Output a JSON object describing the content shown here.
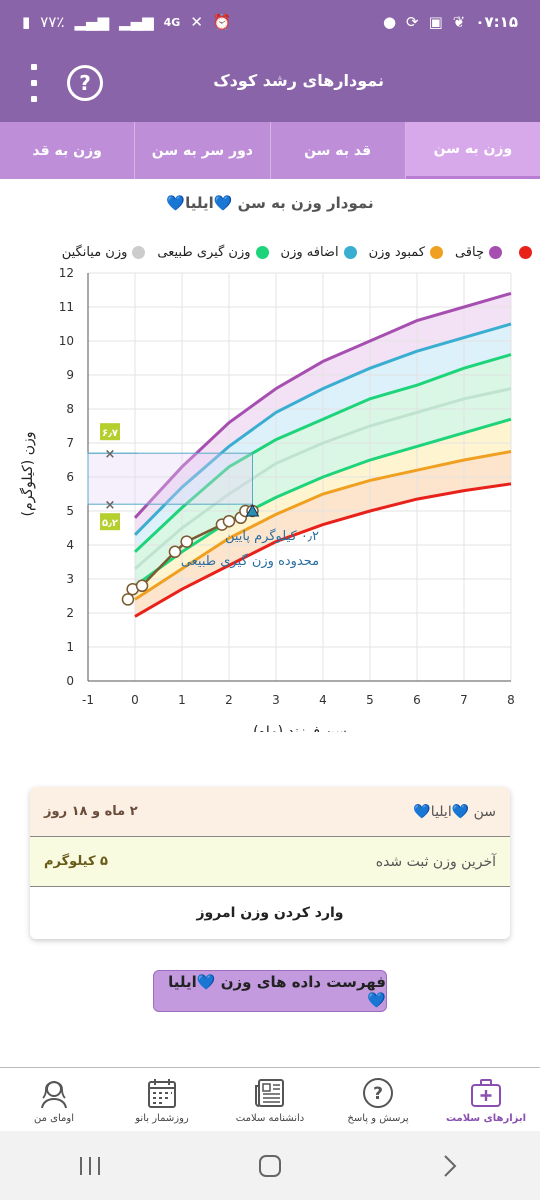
{
  "status_bar": {
    "time": "۰۷:۱۵",
    "battery": "۷۷٪",
    "network": "4G"
  },
  "app_bar": {
    "title": "نمودارهای رشد کودک",
    "help_glyph": "?"
  },
  "tabs": [
    {
      "label": "وزن به سن",
      "active": true
    },
    {
      "label": "قد به سن",
      "active": false
    },
    {
      "label": "دور سر به سن",
      "active": false
    },
    {
      "label": "وزن به قد",
      "active": false
    }
  ],
  "chart_title": "نمودار وزن به سن 💙ایلیا💙",
  "legend": [
    {
      "label": "",
      "color": "#e8211a"
    },
    {
      "label": "چاقی",
      "color": "#a64fb0"
    },
    {
      "label": "کمبود وزن",
      "color": "#f0a020"
    },
    {
      "label": "اضافه وزن",
      "color": "#3aaed0"
    },
    {
      "label": "وزن گیری طبیعی",
      "color": "#1ed47a"
    },
    {
      "label": "وزن میانگین",
      "color": "#cccccc"
    }
  ],
  "chart_data": {
    "type": "line",
    "xlabel": "سن فرزند (ماه)",
    "ylabel": "وزن (کیلوگرم)",
    "xlim": [
      -1,
      8
    ],
    "ylim": [
      0,
      12
    ],
    "xticks": [
      "-1",
      "0",
      "1",
      "2",
      "3",
      "4",
      "5",
      "6",
      "7",
      "8"
    ],
    "yticks": [
      "0",
      "1",
      "2",
      "3",
      "4",
      "5",
      "6",
      "7",
      "8",
      "9",
      "10",
      "11",
      "12"
    ],
    "x": [
      0,
      1,
      2,
      3,
      4,
      5,
      6,
      7,
      8
    ],
    "series": [
      {
        "color": "#e8211a",
        "values": [
          1.9,
          2.7,
          3.4,
          4.1,
          4.6,
          5.0,
          5.35,
          5.6,
          5.8
        ]
      },
      {
        "color": "#f0a020",
        "values": [
          2.4,
          3.3,
          4.2,
          4.9,
          5.5,
          5.9,
          6.2,
          6.5,
          6.75
        ]
      },
      {
        "color": "#1ed47a",
        "values": [
          2.8,
          3.8,
          4.7,
          5.4,
          6.0,
          6.5,
          6.9,
          7.3,
          7.7
        ]
      },
      {
        "color": "#bfe3cf",
        "values": [
          3.3,
          4.5,
          5.5,
          6.4,
          7.0,
          7.5,
          7.9,
          8.3,
          8.6
        ]
      },
      {
        "color": "#1ed47a",
        "values": [
          3.8,
          5.1,
          6.3,
          7.1,
          7.7,
          8.3,
          8.7,
          9.2,
          9.6
        ]
      },
      {
        "color": "#3aaed0",
        "values": [
          4.3,
          5.7,
          6.9,
          7.9,
          8.6,
          9.2,
          9.7,
          10.1,
          10.5
        ]
      },
      {
        "color": "#a64fb0",
        "values": [
          4.8,
          6.3,
          7.6,
          8.6,
          9.4,
          10.0,
          10.6,
          11.0,
          11.4
        ]
      }
    ],
    "child_points": {
      "x": [
        -0.15,
        -0.05,
        0.15,
        0.85,
        1.1,
        1.85,
        2.0,
        2.25,
        2.35,
        2.5
      ],
      "y": [
        2.4,
        2.7,
        2.8,
        3.8,
        4.1,
        4.6,
        4.7,
        4.8,
        5.0,
        5.0
      ]
    },
    "marker": {
      "x": 2.5,
      "y": 5.0
    },
    "range_box": {
      "low": 5.2,
      "high": 6.7,
      "low_label": "۵٫۲",
      "high_label": "۶٫۷"
    },
    "annotations": [
      "۰٫۲ کیلوگرم پایین",
      "محدوده وزن گیری طبیعی"
    ]
  },
  "info": {
    "age_label": "سن 💙ایلیا💙",
    "age_value": "۲ ماه و ۱۸ روز",
    "weight_label": "آخرین وزن ثبت شده",
    "weight_value": "۵ کیلوگرم",
    "enter_weight": "وارد کردن وزن امروز"
  },
  "list_button": "فهرست داده های وزن 💙ایلیا💙",
  "bottom_nav": [
    {
      "label": "ابزارهای سلامت",
      "active": true
    },
    {
      "label": "پرسش و پاسخ",
      "active": false
    },
    {
      "label": "دانشنامه سلامت",
      "active": false
    },
    {
      "label": "روزشمار بانو",
      "active": false
    },
    {
      "label": "اومای من",
      "active": false
    }
  ]
}
